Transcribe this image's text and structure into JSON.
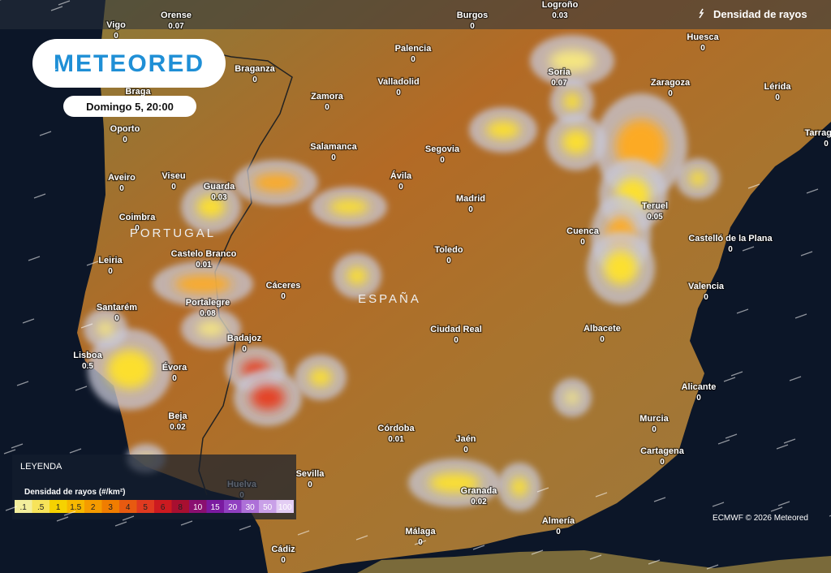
{
  "header": {
    "logo": "METEORED",
    "date": "Domingo 5, 20:00",
    "layer": "Densidad de rayos"
  },
  "countries": [
    "PORTUGAL",
    "ESPAÑA"
  ],
  "cities": [
    {
      "name": "Vigo",
      "value": 0
    },
    {
      "name": "Orense",
      "value": 0.07
    },
    {
      "name": "Burgos",
      "value": 0
    },
    {
      "name": "Logroño",
      "value": 0.03
    },
    {
      "name": "Huesca",
      "value": 0
    },
    {
      "name": "Palencia",
      "value": 0
    },
    {
      "name": "Braganza",
      "value": 0
    },
    {
      "name": "Soria",
      "value": 0.07
    },
    {
      "name": "Zaragoza",
      "value": 0
    },
    {
      "name": "Lérida",
      "value": 0
    },
    {
      "name": "Braga"
    },
    {
      "name": "Zamora",
      "value": 0
    },
    {
      "name": "Valladolid",
      "value": 0
    },
    {
      "name": "Oporto",
      "value": 0
    },
    {
      "name": "Salamanca",
      "value": 0
    },
    {
      "name": "Segovia",
      "value": 0
    },
    {
      "name": "Tarragona",
      "value": 0
    },
    {
      "name": "Aveiro",
      "value": 0
    },
    {
      "name": "Viseu",
      "value": 0
    },
    {
      "name": "Guarda",
      "value": 0.03
    },
    {
      "name": "Ávila",
      "value": 0
    },
    {
      "name": "Madrid",
      "value": 0
    },
    {
      "name": "Teruel",
      "value": 0.05
    },
    {
      "name": "Coimbra",
      "value": 0
    },
    {
      "name": "Cuenca",
      "value": 0
    },
    {
      "name": "Castelló de la Plana",
      "value": 0
    },
    {
      "name": "Leiria",
      "value": 0
    },
    {
      "name": "Castelo Branco",
      "value": 0.01
    },
    {
      "name": "Toledo",
      "value": 0
    },
    {
      "name": "Cáceres",
      "value": 0
    },
    {
      "name": "Valencia",
      "value": 0
    },
    {
      "name": "Santarém",
      "value": 0
    },
    {
      "name": "Portalegre",
      "value": 0.08
    },
    {
      "name": "Badajoz",
      "value": 0
    },
    {
      "name": "Albacete",
      "value": 0
    },
    {
      "name": "Ciudad Real",
      "value": 0
    },
    {
      "name": "Lisboa",
      "value": 0.5
    },
    {
      "name": "Évora",
      "value": 0
    },
    {
      "name": "Alicante",
      "value": 0
    },
    {
      "name": "Beja",
      "value": 0.02
    },
    {
      "name": "Córdoba",
      "value": 0.01
    },
    {
      "name": "Murcia",
      "value": 0
    },
    {
      "name": "Jaén",
      "value": 0
    },
    {
      "name": "Cartagena",
      "value": 0
    },
    {
      "name": "Sevilla",
      "value": 0
    },
    {
      "name": "Huelva",
      "value": 0
    },
    {
      "name": "Granada",
      "value": 0.02
    },
    {
      "name": "Almería",
      "value": 0
    },
    {
      "name": "Málaga",
      "value": 0
    },
    {
      "name": "Cádiz",
      "value": 0
    }
  ],
  "legend": {
    "title": "LEYENDA",
    "subtitle": "Densidad de rayos (#/km²)",
    "labels": [
      ".1",
      ".5",
      "1",
      "1.5",
      "2",
      "3",
      "4",
      "5",
      "6",
      "8",
      "10",
      "15",
      "20",
      "30",
      "50",
      "100"
    ]
  },
  "credit": "ECMWF © 2026 Meteored"
}
